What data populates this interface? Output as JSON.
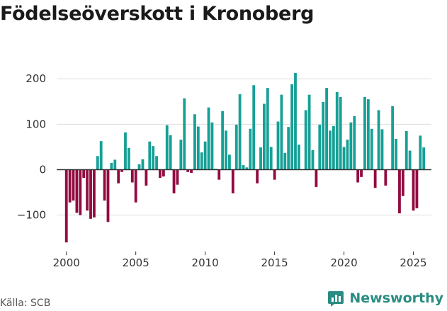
{
  "title": "Födelseöverskott i Kronoberg",
  "source": "Källa: SCB",
  "brand": {
    "name": "Newsworthy"
  },
  "colors": {
    "positive": "#16a096",
    "negative": "#920b40",
    "grid": "#dddddd",
    "zero": "#333333",
    "brand": "#2a8c82"
  },
  "chart_data": {
    "type": "bar",
    "title": "Födelseöverskott i Kronoberg",
    "xlabel": "",
    "ylabel": "",
    "x_start": 2000.0,
    "x_step": 0.25,
    "xlim": [
      1999.3,
      2026.3
    ],
    "ylim": [
      -180,
      230
    ],
    "yticks": [
      -100,
      0,
      100,
      200
    ],
    "ytick_labels": [
      "−100",
      "0",
      "100",
      "200"
    ],
    "xticks": [
      2000,
      2005,
      2010,
      2015,
      2020,
      2025
    ],
    "xtick_labels": [
      "2000",
      "2005",
      "2010",
      "2015",
      "2020",
      "2025"
    ],
    "grid": true,
    "values": [
      -160,
      -72,
      -68,
      -95,
      -100,
      -18,
      -90,
      -108,
      -105,
      30,
      63,
      -68,
      -115,
      15,
      22,
      -30,
      -5,
      82,
      48,
      -28,
      -72,
      12,
      23,
      -35,
      62,
      52,
      30,
      -18,
      -15,
      98,
      76,
      -52,
      -33,
      66,
      157,
      -5,
      -7,
      122,
      95,
      38,
      62,
      137,
      104,
      2,
      -22,
      129,
      86,
      33,
      -52,
      99,
      166,
      10,
      5,
      90,
      186,
      -30,
      49,
      145,
      180,
      50,
      -22,
      106,
      165,
      37,
      94,
      188,
      213,
      55,
      0,
      131,
      165,
      43,
      -38,
      99,
      149,
      180,
      86,
      96,
      171,
      160,
      50,
      66,
      104,
      118,
      -28,
      -16,
      160,
      155,
      90,
      -40,
      131,
      89,
      -35,
      0,
      140,
      68,
      -96,
      -58,
      85,
      42,
      -90,
      -85,
      75,
      49
    ]
  }
}
